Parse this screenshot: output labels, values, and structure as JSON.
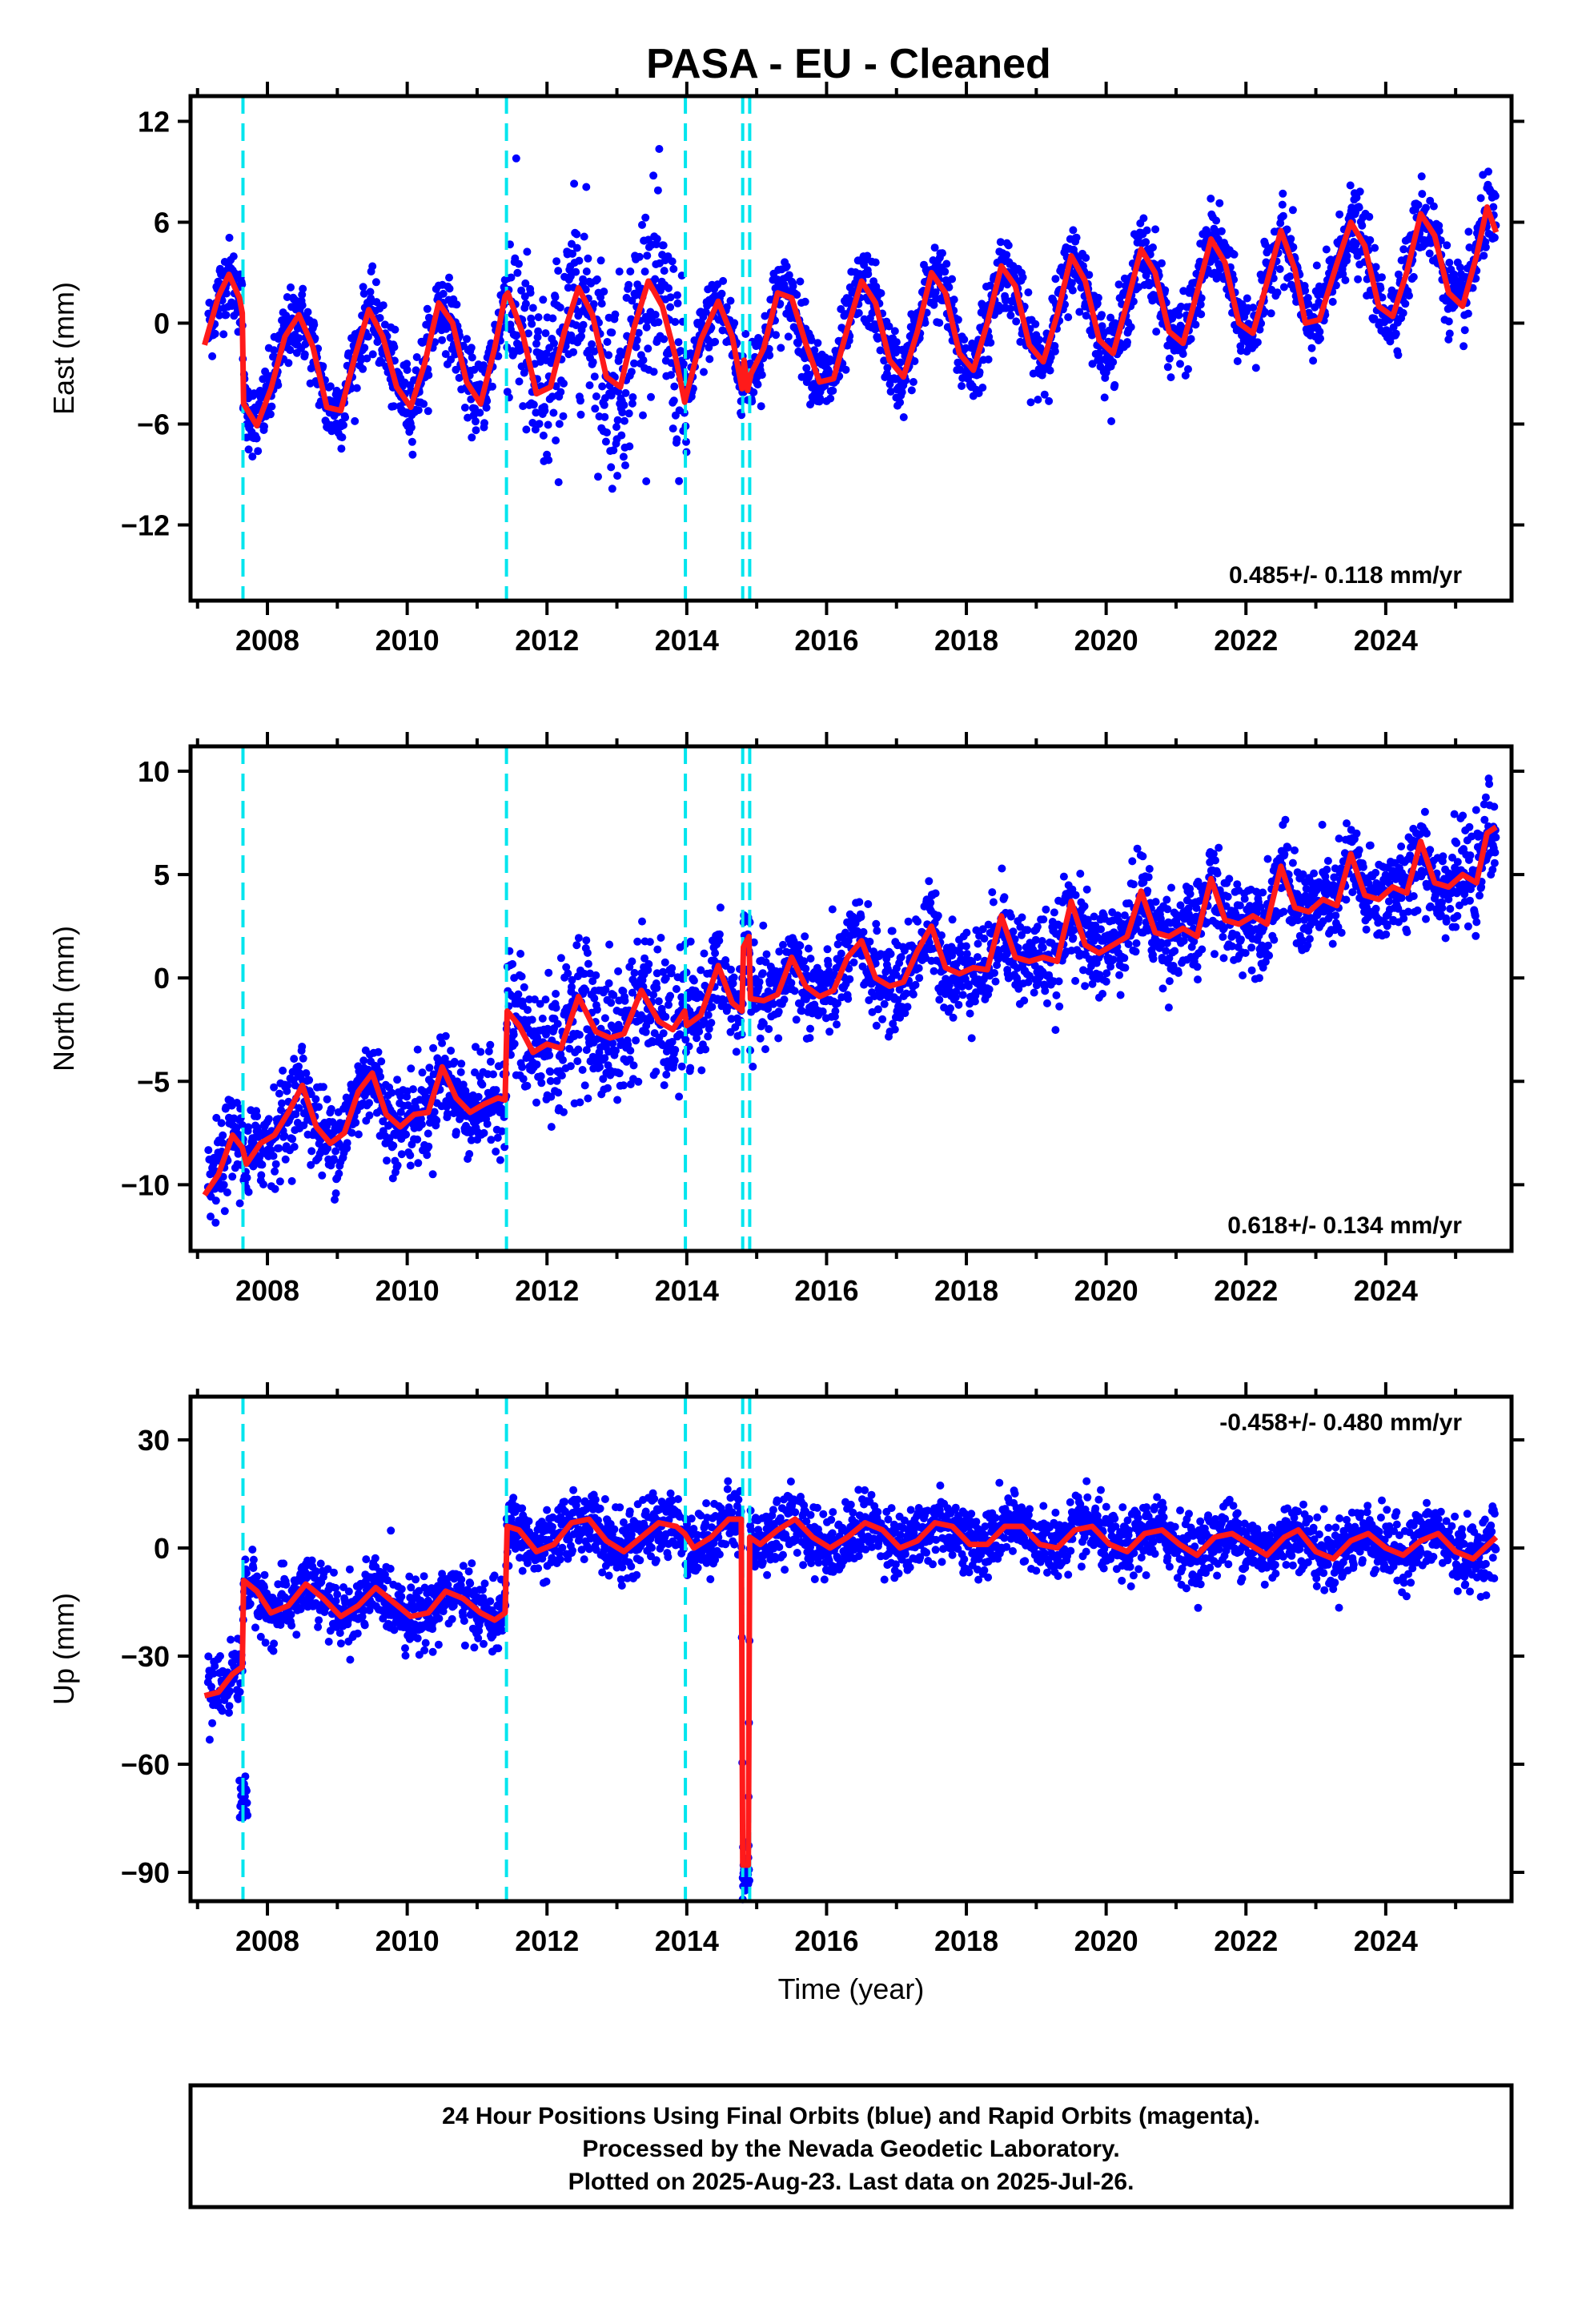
{
  "title": "PASA  - EU - Cleaned",
  "colors": {
    "points": "#0000ff",
    "model": "#ff1a1a",
    "events": "#00e5ee",
    "frame": "#000000"
  },
  "chart_data": [
    {
      "type": "scatter",
      "component": "east",
      "ylabel": "East (mm)",
      "xlabel": "",
      "xlim": [
        2006.9,
        2025.8
      ],
      "ylim": [
        -16.5,
        13.5
      ],
      "yticks": [
        12,
        6,
        0,
        -6,
        -12
      ],
      "ytick_labels": [
        "12",
        "6",
        "0",
        "−6",
        "−12"
      ],
      "xticks": [
        2008,
        2010,
        2012,
        2014,
        2016,
        2018,
        2020,
        2022,
        2024
      ],
      "xtick_labels": [
        "2008",
        "2010",
        "2012",
        "2014",
        "2016",
        "2018",
        "2020",
        "2022",
        "2024"
      ],
      "rate_label": "0.485+/- 0.118 mm/yr",
      "rate_position": "bottom-right",
      "event_lines": [
        2007.65,
        2011.42,
        2013.98,
        2014.8,
        2014.9
      ],
      "model_points": [
        [
          2007.1,
          -1.3
        ],
        [
          2007.3,
          1.6
        ],
        [
          2007.45,
          2.9
        ],
        [
          2007.6,
          1.5
        ],
        [
          2007.64,
          0.6
        ],
        [
          2007.66,
          -4.8
        ],
        [
          2007.85,
          -6.1
        ],
        [
          2008.05,
          -3.9
        ],
        [
          2008.25,
          -0.8
        ],
        [
          2008.45,
          0.5
        ],
        [
          2008.65,
          -1.4
        ],
        [
          2008.85,
          -5.0
        ],
        [
          2009.05,
          -5.2
        ],
        [
          2009.25,
          -2.0
        ],
        [
          2009.45,
          0.8
        ],
        [
          2009.65,
          -0.8
        ],
        [
          2009.85,
          -3.8
        ],
        [
          2010.05,
          -5.0
        ],
        [
          2010.25,
          -2.4
        ],
        [
          2010.45,
          1.2
        ],
        [
          2010.65,
          0.0
        ],
        [
          2010.85,
          -3.5
        ],
        [
          2011.05,
          -4.8
        ],
        [
          2011.25,
          -1.5
        ],
        [
          2011.4,
          1.6
        ],
        [
          2011.44,
          1.8
        ],
        [
          2011.65,
          -0.6
        ],
        [
          2011.85,
          -4.2
        ],
        [
          2012.05,
          -3.8
        ],
        [
          2012.25,
          -0.5
        ],
        [
          2012.45,
          2.1
        ],
        [
          2012.65,
          0.5
        ],
        [
          2012.85,
          -3.2
        ],
        [
          2013.05,
          -3.8
        ],
        [
          2013.25,
          -0.2
        ],
        [
          2013.45,
          2.5
        ],
        [
          2013.65,
          1.0
        ],
        [
          2013.85,
          -2.2
        ],
        [
          2013.97,
          -4.7
        ],
        [
          2014.0,
          -4.2
        ],
        [
          2014.2,
          -1.0
        ],
        [
          2014.45,
          1.3
        ],
        [
          2014.65,
          -0.8
        ],
        [
          2014.79,
          -3.9
        ],
        [
          2014.82,
          -2.2
        ],
        [
          2014.87,
          -4.0
        ],
        [
          2014.92,
          -3.0
        ],
        [
          2015.1,
          -1.5
        ],
        [
          2015.3,
          1.8
        ],
        [
          2015.5,
          1.5
        ],
        [
          2015.7,
          -1.2
        ],
        [
          2015.9,
          -3.5
        ],
        [
          2016.1,
          -3.3
        ],
        [
          2016.3,
          -0.3
        ],
        [
          2016.5,
          2.5
        ],
        [
          2016.7,
          1.2
        ],
        [
          2016.9,
          -2.2
        ],
        [
          2017.1,
          -3.2
        ],
        [
          2017.3,
          -0.5
        ],
        [
          2017.5,
          3.0
        ],
        [
          2017.7,
          1.8
        ],
        [
          2017.9,
          -1.8
        ],
        [
          2018.1,
          -2.8
        ],
        [
          2018.3,
          0.0
        ],
        [
          2018.5,
          3.4
        ],
        [
          2018.7,
          2.2
        ],
        [
          2018.9,
          -1.3
        ],
        [
          2019.1,
          -2.3
        ],
        [
          2019.3,
          0.5
        ],
        [
          2019.5,
          4.0
        ],
        [
          2019.7,
          2.5
        ],
        [
          2019.9,
          -1.0
        ],
        [
          2020.1,
          -1.8
        ],
        [
          2020.3,
          1.2
        ],
        [
          2020.5,
          4.4
        ],
        [
          2020.7,
          3.0
        ],
        [
          2020.9,
          -0.5
        ],
        [
          2021.1,
          -1.2
        ],
        [
          2021.3,
          1.8
        ],
        [
          2021.5,
          5.0
        ],
        [
          2021.7,
          3.6
        ],
        [
          2021.9,
          0.0
        ],
        [
          2022.1,
          -0.6
        ],
        [
          2022.3,
          2.4
        ],
        [
          2022.5,
          5.5
        ],
        [
          2022.7,
          3.2
        ],
        [
          2022.85,
          0.0
        ],
        [
          2023.05,
          0.2
        ],
        [
          2023.3,
          3.5
        ],
        [
          2023.5,
          6.0
        ],
        [
          2023.7,
          4.6
        ],
        [
          2023.9,
          1.0
        ],
        [
          2024.1,
          0.4
        ],
        [
          2024.3,
          3.0
        ],
        [
          2024.5,
          6.5
        ],
        [
          2024.7,
          5.2
        ],
        [
          2024.9,
          1.8
        ],
        [
          2025.1,
          1.0
        ],
        [
          2025.3,
          4.0
        ],
        [
          2025.45,
          6.9
        ],
        [
          2025.58,
          5.4
        ]
      ]
    },
    {
      "type": "scatter",
      "component": "north",
      "ylabel": "North (mm)",
      "xlabel": "",
      "xlim": [
        2006.9,
        2025.8
      ],
      "ylim": [
        -13.2,
        11.2
      ],
      "yticks": [
        10,
        5,
        0,
        -5,
        -10
      ],
      "ytick_labels": [
        "10",
        "5",
        "0",
        "−5",
        "−10"
      ],
      "xticks": [
        2008,
        2010,
        2012,
        2014,
        2016,
        2018,
        2020,
        2022,
        2024
      ],
      "xtick_labels": [
        "2008",
        "2010",
        "2012",
        "2014",
        "2016",
        "2018",
        "2020",
        "2022",
        "2024"
      ],
      "rate_label": "0.618+/- 0.134 mm/yr",
      "rate_position": "bottom-right",
      "event_lines": [
        2007.65,
        2011.42,
        2013.98,
        2014.8,
        2014.9
      ],
      "model_points": [
        [
          2007.1,
          -10.5
        ],
        [
          2007.3,
          -9.5
        ],
        [
          2007.5,
          -7.6
        ],
        [
          2007.64,
          -8.2
        ],
        [
          2007.7,
          -9.0
        ],
        [
          2007.9,
          -8.0
        ],
        [
          2008.1,
          -7.6
        ],
        [
          2008.3,
          -6.5
        ],
        [
          2008.5,
          -5.2
        ],
        [
          2008.7,
          -7.2
        ],
        [
          2008.9,
          -8.0
        ],
        [
          2009.1,
          -7.5
        ],
        [
          2009.3,
          -5.5
        ],
        [
          2009.5,
          -4.6
        ],
        [
          2009.7,
          -6.6
        ],
        [
          2009.9,
          -7.2
        ],
        [
          2010.1,
          -6.6
        ],
        [
          2010.3,
          -6.5
        ],
        [
          2010.5,
          -4.3
        ],
        [
          2010.7,
          -5.8
        ],
        [
          2010.9,
          -6.5
        ],
        [
          2011.1,
          -6.1
        ],
        [
          2011.3,
          -5.8
        ],
        [
          2011.4,
          -5.9
        ],
        [
          2011.43,
          -1.6
        ],
        [
          2011.6,
          -2.3
        ],
        [
          2011.8,
          -3.6
        ],
        [
          2012.0,
          -3.2
        ],
        [
          2012.2,
          -3.4
        ],
        [
          2012.45,
          -0.9
        ],
        [
          2012.7,
          -2.6
        ],
        [
          2012.9,
          -2.9
        ],
        [
          2013.1,
          -2.7
        ],
        [
          2013.35,
          -0.6
        ],
        [
          2013.6,
          -2.1
        ],
        [
          2013.8,
          -2.5
        ],
        [
          2013.97,
          -1.6
        ],
        [
          2014.0,
          -2.3
        ],
        [
          2014.2,
          -1.8
        ],
        [
          2014.45,
          0.6
        ],
        [
          2014.65,
          -1.2
        ],
        [
          2014.79,
          -1.6
        ],
        [
          2014.81,
          1.5
        ],
        [
          2014.89,
          2.0
        ],
        [
          2014.91,
          -1.0
        ],
        [
          2015.1,
          -1.1
        ],
        [
          2015.3,
          -0.8
        ],
        [
          2015.5,
          1.0
        ],
        [
          2015.7,
          -0.4
        ],
        [
          2015.9,
          -0.9
        ],
        [
          2016.1,
          -0.6
        ],
        [
          2016.3,
          1.0
        ],
        [
          2016.5,
          1.8
        ],
        [
          2016.7,
          0.0
        ],
        [
          2016.9,
          -0.4
        ],
        [
          2017.1,
          -0.2
        ],
        [
          2017.3,
          1.3
        ],
        [
          2017.5,
          2.5
        ],
        [
          2017.7,
          0.5
        ],
        [
          2017.9,
          0.2
        ],
        [
          2018.1,
          0.5
        ],
        [
          2018.3,
          0.4
        ],
        [
          2018.5,
          3.0
        ],
        [
          2018.7,
          1.0
        ],
        [
          2018.9,
          0.8
        ],
        [
          2019.1,
          1.0
        ],
        [
          2019.3,
          0.8
        ],
        [
          2019.5,
          3.7
        ],
        [
          2019.7,
          1.6
        ],
        [
          2019.9,
          1.2
        ],
        [
          2020.1,
          1.6
        ],
        [
          2020.3,
          2.0
        ],
        [
          2020.5,
          4.2
        ],
        [
          2020.7,
          2.2
        ],
        [
          2020.9,
          2.0
        ],
        [
          2021.1,
          2.4
        ],
        [
          2021.3,
          2.0
        ],
        [
          2021.5,
          4.8
        ],
        [
          2021.7,
          2.8
        ],
        [
          2021.9,
          2.6
        ],
        [
          2022.1,
          3.0
        ],
        [
          2022.3,
          2.6
        ],
        [
          2022.5,
          5.4
        ],
        [
          2022.7,
          3.4
        ],
        [
          2022.9,
          3.2
        ],
        [
          2023.1,
          3.8
        ],
        [
          2023.3,
          3.5
        ],
        [
          2023.5,
          6.0
        ],
        [
          2023.7,
          4.0
        ],
        [
          2023.9,
          3.8
        ],
        [
          2024.1,
          4.4
        ],
        [
          2024.3,
          4.1
        ],
        [
          2024.5,
          6.6
        ],
        [
          2024.7,
          4.6
        ],
        [
          2024.9,
          4.4
        ],
        [
          2025.1,
          5.0
        ],
        [
          2025.3,
          4.6
        ],
        [
          2025.45,
          7.0
        ],
        [
          2025.58,
          7.3
        ]
      ]
    },
    {
      "type": "scatter",
      "component": "up",
      "ylabel": "Up (mm)",
      "xlabel": "Time (year)",
      "xlim": [
        2006.9,
        2025.8
      ],
      "ylim": [
        -98,
        42
      ],
      "yticks": [
        30,
        0,
        -30,
        -60,
        -90
      ],
      "ytick_labels": [
        "30",
        "0",
        "−30",
        "−60",
        "−90"
      ],
      "xticks": [
        2008,
        2010,
        2012,
        2014,
        2016,
        2018,
        2020,
        2022,
        2024
      ],
      "xtick_labels": [
        "2008",
        "2010",
        "2012",
        "2014",
        "2016",
        "2018",
        "2020",
        "2022",
        "2024"
      ],
      "rate_label": "-0.458+/- 0.480 mm/yr",
      "rate_position": "top-right",
      "event_lines": [
        2007.65,
        2011.42,
        2013.98,
        2014.8,
        2014.9
      ],
      "model_points": [
        [
          2007.1,
          -41
        ],
        [
          2007.3,
          -40
        ],
        [
          2007.5,
          -35
        ],
        [
          2007.64,
          -33
        ],
        [
          2007.66,
          -9
        ],
        [
          2007.85,
          -12
        ],
        [
          2008.05,
          -18
        ],
        [
          2008.3,
          -16
        ],
        [
          2008.55,
          -10
        ],
        [
          2008.8,
          -14
        ],
        [
          2009.05,
          -19
        ],
        [
          2009.3,
          -16
        ],
        [
          2009.55,
          -11
        ],
        [
          2009.8,
          -15
        ],
        [
          2010.05,
          -19
        ],
        [
          2010.3,
          -18
        ],
        [
          2010.55,
          -12
        ],
        [
          2010.8,
          -14
        ],
        [
          2011.05,
          -18
        ],
        [
          2011.25,
          -20
        ],
        [
          2011.4,
          -18
        ],
        [
          2011.43,
          6
        ],
        [
          2011.6,
          5
        ],
        [
          2011.85,
          -1
        ],
        [
          2012.1,
          1
        ],
        [
          2012.35,
          7
        ],
        [
          2012.6,
          8
        ],
        [
          2012.85,
          2
        ],
        [
          2013.1,
          -1
        ],
        [
          2013.35,
          3
        ],
        [
          2013.6,
          7
        ],
        [
          2013.85,
          6
        ],
        [
          2013.97,
          4
        ],
        [
          2014.1,
          0
        ],
        [
          2014.35,
          3
        ],
        [
          2014.6,
          8
        ],
        [
          2014.78,
          8
        ],
        [
          2014.8,
          -88
        ],
        [
          2014.88,
          -88
        ],
        [
          2014.9,
          3
        ],
        [
          2015.05,
          1
        ],
        [
          2015.3,
          5
        ],
        [
          2015.55,
          8
        ],
        [
          2015.8,
          3
        ],
        [
          2016.05,
          0
        ],
        [
          2016.3,
          3
        ],
        [
          2016.55,
          7
        ],
        [
          2016.8,
          5
        ],
        [
          2017.05,
          0
        ],
        [
          2017.3,
          2
        ],
        [
          2017.55,
          7
        ],
        [
          2017.8,
          6
        ],
        [
          2018.05,
          1
        ],
        [
          2018.3,
          1
        ],
        [
          2018.55,
          6
        ],
        [
          2018.8,
          6
        ],
        [
          2019.05,
          1
        ],
        [
          2019.3,
          0
        ],
        [
          2019.55,
          5
        ],
        [
          2019.8,
          6
        ],
        [
          2020.05,
          1
        ],
        [
          2020.3,
          -1
        ],
        [
          2020.55,
          4
        ],
        [
          2020.8,
          5
        ],
        [
          2021.05,
          1
        ],
        [
          2021.3,
          -2
        ],
        [
          2021.55,
          3
        ],
        [
          2021.8,
          4
        ],
        [
          2022.05,
          1
        ],
        [
          2022.3,
          -2
        ],
        [
          2022.55,
          3
        ],
        [
          2022.75,
          5
        ],
        [
          2023.0,
          -1
        ],
        [
          2023.25,
          -3
        ],
        [
          2023.5,
          2
        ],
        [
          2023.75,
          4
        ],
        [
          2024.0,
          0
        ],
        [
          2024.25,
          -2
        ],
        [
          2024.5,
          2
        ],
        [
          2024.75,
          4
        ],
        [
          2025.0,
          -1
        ],
        [
          2025.25,
          -3
        ],
        [
          2025.58,
          3
        ]
      ]
    }
  ],
  "footer": {
    "line1": "24 Hour Positions Using Final Orbits (blue) and Rapid Orbits (magenta).",
    "line2": "Processed by the Nevada Geodetic Laboratory.",
    "line3": "Plotted on 2025-Aug-23. Last data on 2025-Jul-26."
  }
}
